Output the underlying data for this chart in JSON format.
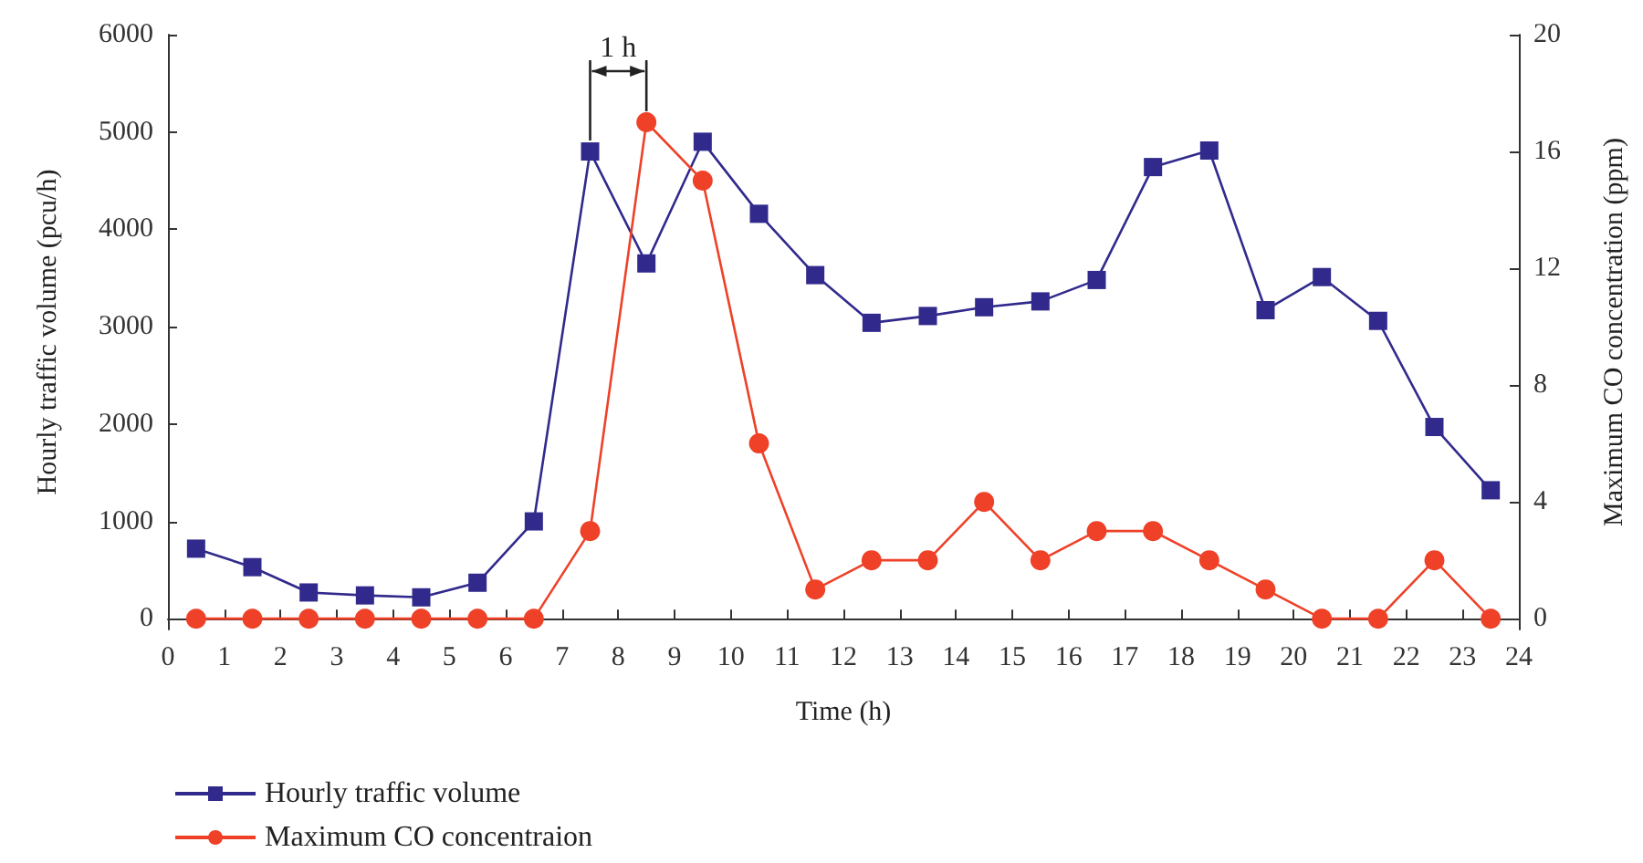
{
  "chart_data": {
    "type": "line",
    "xlabel": "Time (h)",
    "ylabel": "Hourly traffic volume (pcu/h)",
    "y2label": "Maximum CO concentration (ppm)",
    "x": [
      0.5,
      1.5,
      2.5,
      3.5,
      4.5,
      5.5,
      6.5,
      7.5,
      8.5,
      9.5,
      10.5,
      11.5,
      12.5,
      13.5,
      14.5,
      15.5,
      16.5,
      17.5,
      18.5,
      19.5,
      20.5,
      21.5,
      22.5,
      23.5
    ],
    "series": [
      {
        "name": "Hourly traffic volume",
        "color": "#312a8c",
        "marker": "square",
        "values": [
          720,
          530,
          270,
          240,
          220,
          370,
          1000,
          4800,
          3650,
          4900,
          4160,
          3530,
          3040,
          3110,
          3200,
          3260,
          3480,
          4640,
          4810,
          3170,
          3510,
          3060,
          1970,
          1320
        ]
      },
      {
        "name": "Maximum CO concentraion",
        "color": "#ee4128",
        "marker": "circle",
        "axis": "y2",
        "values": [
          0,
          0,
          0,
          0,
          0,
          0,
          0,
          3,
          17,
          15,
          6,
          1,
          2,
          2,
          4,
          2,
          3,
          3,
          2,
          1,
          0,
          0,
          2,
          0
        ]
      }
    ],
    "xlim": [
      0,
      24
    ],
    "xticks": [
      0,
      1,
      2,
      3,
      4,
      5,
      6,
      7,
      8,
      9,
      10,
      11,
      12,
      13,
      14,
      15,
      16,
      17,
      18,
      19,
      20,
      21,
      22,
      23,
      24
    ],
    "ylim": [
      -110,
      6000
    ],
    "yticks": [
      0,
      1000,
      2000,
      3000,
      4000,
      5000,
      6000
    ],
    "y2lim": [
      -0.37,
      20
    ],
    "y2ticks": [
      0,
      4,
      8,
      12,
      16,
      20
    ],
    "annotations": [
      {
        "text": "1 h",
        "x": 7.5,
        "y": 4800
      }
    ],
    "legend": "bottom left",
    "grid": false,
    "line_style": "solid"
  }
}
